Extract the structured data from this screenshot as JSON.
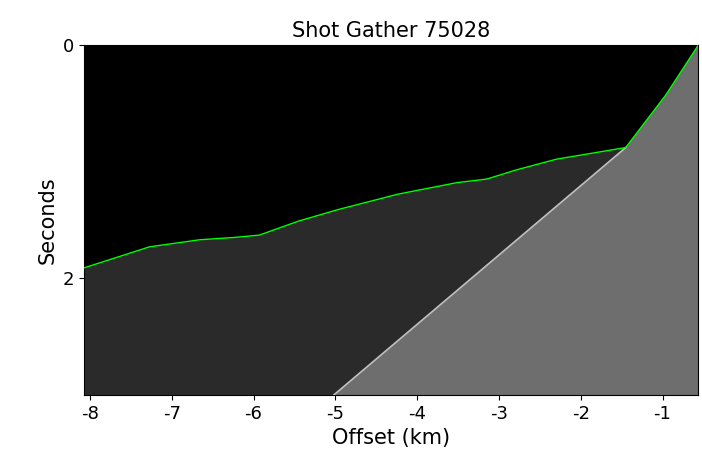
{
  "chart_data": {
    "type": "line",
    "title": "Shot Gather 75028",
    "x_label": "Offset (km)",
    "y_label": "Seconds",
    "xlim": [
      -8.07,
      -0.56
    ],
    "xticks": [
      -8,
      -7,
      -6,
      -5,
      -4,
      -3,
      -2,
      -1
    ],
    "ylim": [
      3.0,
      0.0
    ],
    "yticks": [
      0,
      2
    ],
    "series": [
      {
        "color": "#00ff00",
        "x": [
          -8.07,
          -7.27,
          -6.66,
          -6.24,
          -5.93,
          -5.45,
          -4.96,
          -4.24,
          -3.51,
          -3.15,
          -2.78,
          -2.3,
          -1.45,
          -0.96,
          -0.56
        ],
        "values": [
          1.91,
          1.73,
          1.67,
          1.65,
          1.63,
          1.51,
          1.41,
          1.28,
          1.18,
          1.15,
          1.07,
          0.98,
          0.88,
          0.43,
          0.0
        ]
      },
      {
        "color": "#bfbfbf",
        "x": [
          -5.02,
          -1.45
        ],
        "values": [
          3.0,
          0.88
        ]
      }
    ]
  }
}
